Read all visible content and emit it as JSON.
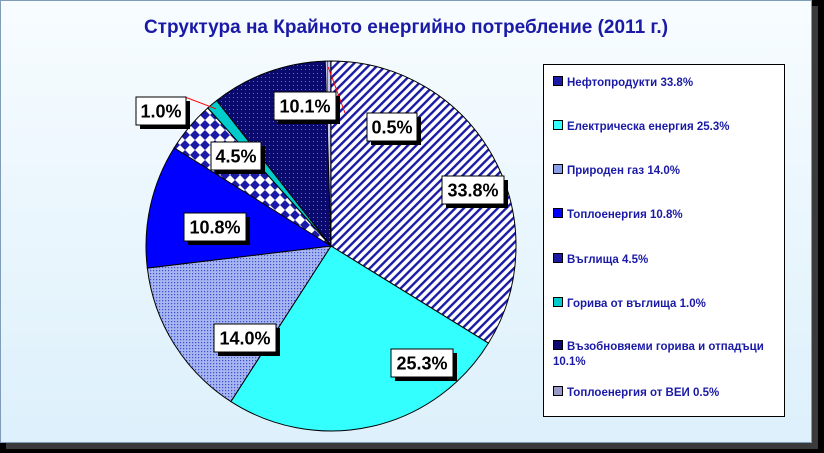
{
  "chart_data": {
    "type": "pie",
    "title": "Структура  на Крайното енергийно потребление (2011 г.)",
    "slices": [
      {
        "label": "Нефтопродукти",
        "value": 33.8,
        "data_label": "33.8%",
        "legend": "Нефтопродукти  33.8%",
        "color": "#1a1aa6",
        "pattern": "diag-navy"
      },
      {
        "label": "Електрическа енергия",
        "value": 25.3,
        "data_label": "25.3%",
        "legend": "Електрическа енергия 25.3%",
        "color": "#33ffff",
        "pattern": "solid-cyan"
      },
      {
        "label": "Природен газ",
        "value": 14.0,
        "data_label": "14.0%",
        "legend": "Природен газ 14.0%",
        "color": "#8a9ee8",
        "pattern": "dots-blue"
      },
      {
        "label": "Топлоенергия",
        "value": 10.8,
        "data_label": "10.8%",
        "legend": "Топлоенергия 10.8%",
        "color": "#0000ff",
        "pattern": "solid-blue"
      },
      {
        "label": "Въглища",
        "value": 4.5,
        "data_label": "4.5%",
        "legend": "Въглища 4.5%",
        "color": "#1a1aa6",
        "pattern": "check-navy"
      },
      {
        "label": "Горива от въглища",
        "value": 1.0,
        "data_label": "1.0%",
        "legend": "Горива от въглища  1.0%",
        "color": "#00cccc",
        "pattern": "solid-teal"
      },
      {
        "label": "Възобновяеми горива и отпадъци",
        "value": 10.1,
        "data_label": "10.1%",
        "legend": "Възобновяеми горива и отпадъци  10.1%",
        "color": "#0a0a6e",
        "pattern": "dots-dark"
      },
      {
        "label": "Топлоенергия от ВЕИ",
        "value": 0.5,
        "data_label": "0.5%",
        "legend": "Топлоенергия от ВЕИ 0.5%",
        "color": "#9999cc",
        "pattern": "stripe-lilac"
      }
    ],
    "legend_position": "right",
    "start_angle": "12 o'clock",
    "direction": "clockwise"
  }
}
